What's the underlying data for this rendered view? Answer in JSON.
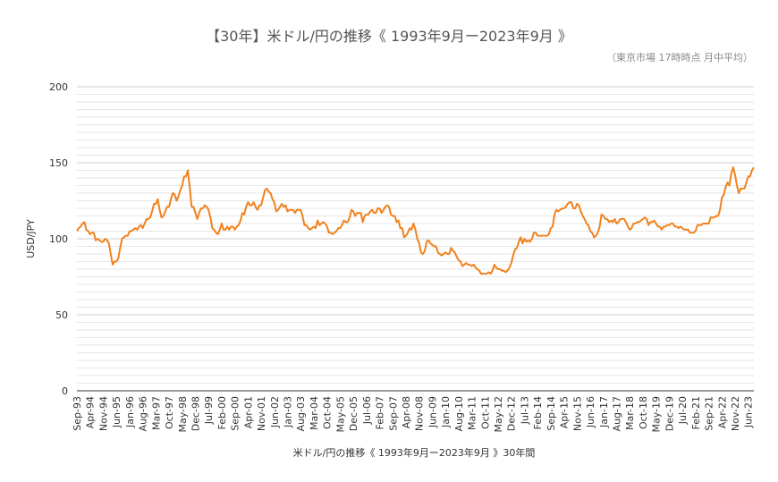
{
  "chart_data": {
    "type": "line",
    "title": "【30年】米ドル/円の推移《 1993年9月ー2023年9月 》",
    "subtitle": "（東京市場 17時時点 月中平均）",
    "x_label": "米ドル/円の推移《 1993年9月ー2023年9月 》30年間",
    "y_label": "USD/JPY",
    "ylim": [
      0,
      200
    ],
    "yticks": [
      0,
      50,
      100,
      150,
      200
    ],
    "grid": true,
    "minor_grid": true,
    "categories": [
      "Sep-93",
      null,
      null,
      null,
      null,
      null,
      null,
      "Apr-94",
      null,
      null,
      null,
      null,
      null,
      null,
      "Nov-94",
      null,
      null,
      null,
      null,
      null,
      null,
      "Jun-95",
      null,
      null,
      null,
      null,
      null,
      null,
      "Jan-96",
      null,
      null,
      null,
      null,
      null,
      null,
      "Aug-96",
      null,
      null,
      null,
      null,
      null,
      null,
      "Mar-97",
      null,
      null,
      null,
      null,
      null,
      null,
      "Oct-97",
      null,
      null,
      null,
      null,
      null,
      null,
      "May-98",
      null,
      null,
      null,
      null,
      null,
      null,
      "Dec-98",
      null,
      null,
      null,
      null,
      null,
      null,
      "Jul-99",
      null,
      null,
      null,
      null,
      null,
      null,
      "Feb-00",
      null,
      null,
      null,
      null,
      null,
      null,
      "Sep-00",
      null,
      null,
      null,
      null,
      null,
      null,
      "Apr-01",
      null,
      null,
      null,
      null,
      null,
      null,
      "Nov-01",
      null,
      null,
      null,
      null,
      null,
      null,
      "Jun-02",
      null,
      null,
      null,
      null,
      null,
      null,
      "Jan-03",
      null,
      null,
      null,
      null,
      null,
      null,
      "Aug-03",
      null,
      null,
      null,
      null,
      null,
      null,
      "Mar-04",
      null,
      null,
      null,
      null,
      null,
      null,
      "Oct-04",
      null,
      null,
      null,
      null,
      null,
      null,
      "May-05",
      null,
      null,
      null,
      null,
      null,
      null,
      "Dec-05",
      null,
      null,
      null,
      null,
      null,
      null,
      "Jul-06",
      null,
      null,
      null,
      null,
      null,
      null,
      "Feb-07",
      null,
      null,
      null,
      null,
      null,
      null,
      "Sep-07",
      null,
      null,
      null,
      null,
      null,
      null,
      "Apr-08",
      null,
      null,
      null,
      null,
      null,
      null,
      "Nov-08",
      null,
      null,
      null,
      null,
      null,
      null,
      "Jun-09",
      null,
      null,
      null,
      null,
      null,
      null,
      "Jan-10",
      null,
      null,
      null,
      null,
      null,
      null,
      "Aug-10",
      null,
      null,
      null,
      null,
      null,
      null,
      "Mar-11",
      null,
      null,
      null,
      null,
      null,
      null,
      "Oct-11",
      null,
      null,
      null,
      null,
      null,
      null,
      "May-12",
      null,
      null,
      null,
      null,
      null,
      null,
      "Dec-12",
      null,
      null,
      null,
      null,
      null,
      null,
      "Jul-13",
      null,
      null,
      null,
      null,
      null,
      null,
      "Feb-14",
      null,
      null,
      null,
      null,
      null,
      null,
      "Sep-14",
      null,
      null,
      null,
      null,
      null,
      null,
      "Apr-15",
      null,
      null,
      null,
      null,
      null,
      null,
      "Nov-15",
      null,
      null,
      null,
      null,
      null,
      null,
      "Jun-16",
      null,
      null,
      null,
      null,
      null,
      null,
      "Jan-17",
      null,
      null,
      null,
      null,
      null,
      null,
      "Aug-17",
      null,
      null,
      null,
      null,
      null,
      null,
      "Mar-18",
      null,
      null,
      null,
      null,
      null,
      null,
      "Oct-18",
      null,
      null,
      null,
      null,
      null,
      null,
      "May-19",
      null,
      null,
      null,
      null,
      null,
      null,
      "Dec-19",
      null,
      null,
      null,
      null,
      null,
      null,
      "Jul-20",
      null,
      null,
      null,
      null,
      null,
      null,
      "Feb-21",
      null,
      null,
      null,
      null,
      null,
      null,
      "Sep-21",
      null,
      null,
      null,
      null,
      null,
      null,
      "Apr-22",
      null,
      null,
      null,
      null,
      null,
      null,
      "Nov-22",
      null,
      null,
      null,
      null,
      null,
      null,
      "Jun-23",
      null,
      null,
      null
    ],
    "series": [
      {
        "name": "USD/JPY",
        "color": "#f0821e",
        "values": [
          105,
          107,
          108,
          110,
          111,
          106,
          105,
          103,
          104,
          104,
          99,
          100,
          99,
          98,
          98,
          100,
          99,
          97,
          90,
          83,
          85,
          85,
          87,
          94,
          100,
          101,
          102,
          102,
          105,
          105,
          106,
          107,
          106,
          108,
          109,
          107,
          110,
          113,
          113,
          114,
          118,
          123,
          123,
          126,
          119,
          114,
          115,
          118,
          121,
          121,
          126,
          130,
          129,
          125,
          128,
          132,
          135,
          141,
          141,
          145,
          134,
          121,
          121,
          117,
          113,
          117,
          120,
          120,
          122,
          121,
          119,
          114,
          107,
          106,
          104,
          103,
          106,
          110,
          106,
          106,
          108,
          106,
          108,
          108,
          106,
          108,
          109,
          112,
          117,
          116,
          121,
          124,
          122,
          122,
          124,
          121,
          119,
          122,
          122,
          127,
          132,
          133,
          131,
          130,
          126,
          124,
          118,
          119,
          121,
          123,
          121,
          122,
          118,
          119,
          119,
          119,
          117,
          119,
          119,
          119,
          115,
          109,
          109,
          107,
          106,
          107,
          108,
          107,
          112,
          109,
          110,
          111,
          110,
          108,
          104,
          104,
          103,
          104,
          105,
          107,
          107,
          109,
          112,
          111,
          111,
          114,
          119,
          118,
          115,
          117,
          117,
          117,
          111,
          115,
          116,
          116,
          118,
          119,
          117,
          117,
          120,
          120,
          117,
          119,
          121,
          122,
          121,
          116,
          115,
          115,
          111,
          112,
          107,
          107,
          101,
          102,
          104,
          107,
          106,
          110,
          106,
          100,
          97,
          91,
          90,
          92,
          98,
          99,
          97,
          96,
          95,
          95,
          91,
          90,
          89,
          90,
          91,
          90,
          90,
          94,
          92,
          91,
          88,
          86,
          85,
          82,
          83,
          84,
          83,
          83,
          82,
          83,
          81,
          80,
          79,
          77,
          77,
          77,
          77,
          78,
          77,
          79,
          83,
          81,
          80,
          80,
          79,
          79,
          78,
          79,
          81,
          84,
          89,
          93,
          94,
          98,
          101,
          97,
          100,
          98,
          99,
          98,
          100,
          104,
          104,
          102,
          102,
          102,
          102,
          102,
          102,
          103,
          107,
          108,
          116,
          119,
          118,
          119,
          120,
          120,
          121,
          123,
          124,
          124,
          120,
          120,
          123,
          122,
          118,
          115,
          113,
          110,
          109,
          105,
          104,
          101,
          102,
          104,
          108,
          116,
          115,
          113,
          113,
          111,
          112,
          111,
          113,
          110,
          111,
          113,
          113,
          113,
          111,
          108,
          106,
          107,
          110,
          110,
          111,
          111,
          112,
          113,
          114,
          113,
          109,
          111,
          111,
          112,
          110,
          108,
          108,
          106,
          108,
          108,
          109,
          109,
          110,
          110,
          108,
          108,
          107,
          108,
          107,
          106,
          106,
          106,
          104,
          104,
          104,
          105,
          109,
          109,
          109,
          110,
          110,
          110,
          110,
          114,
          114,
          114,
          115,
          115,
          119,
          127,
          129,
          134,
          137,
          135,
          143,
          147,
          142,
          135,
          130,
          133,
          133,
          133,
          137,
          141,
          141,
          145,
          147
        ]
      }
    ]
  }
}
